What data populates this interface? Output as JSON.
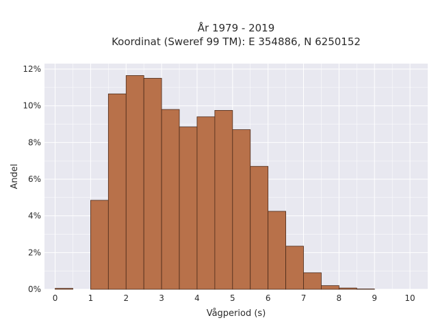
{
  "chart_data": {
    "type": "bar",
    "title": "År 1979 - 2019",
    "subtitle": "Koordinat (Sweref 99 TM): E 354886, N 6250152",
    "xlabel": "Vågperiod (s)",
    "ylabel": "Andel",
    "xlim": [
      -0.3,
      10.5
    ],
    "ylim": [
      0,
      12.3
    ],
    "x_ticks": [
      0,
      1,
      2,
      3,
      4,
      5,
      6,
      7,
      8,
      9,
      10
    ],
    "y_ticks": [
      0,
      2,
      4,
      6,
      8,
      10,
      12
    ],
    "y_tick_suffix": "%",
    "bin_width": 0.5,
    "bins": [
      {
        "start": 0.0,
        "value": 0.05
      },
      {
        "start": 0.5,
        "value": 0.0
      },
      {
        "start": 1.0,
        "value": 4.85
      },
      {
        "start": 1.5,
        "value": 10.65
      },
      {
        "start": 2.0,
        "value": 11.65
      },
      {
        "start": 2.5,
        "value": 11.5
      },
      {
        "start": 3.0,
        "value": 9.8
      },
      {
        "start": 3.5,
        "value": 8.85
      },
      {
        "start": 4.0,
        "value": 9.4
      },
      {
        "start": 4.5,
        "value": 9.75
      },
      {
        "start": 5.0,
        "value": 8.7
      },
      {
        "start": 5.5,
        "value": 6.7
      },
      {
        "start": 6.0,
        "value": 4.25
      },
      {
        "start": 6.5,
        "value": 2.35
      },
      {
        "start": 7.0,
        "value": 0.9
      },
      {
        "start": 7.5,
        "value": 0.2
      },
      {
        "start": 8.0,
        "value": 0.07
      },
      {
        "start": 8.5,
        "value": 0.02
      },
      {
        "start": 9.0,
        "value": 0.0
      },
      {
        "start": 9.5,
        "value": 0.0
      }
    ],
    "grid": true,
    "legend": "none",
    "colors": {
      "bar_fill": "#b8714a",
      "bar_stroke": "#4a2a1a",
      "plot_background": "#e8e8f0",
      "grid": "#ffffff"
    }
  }
}
